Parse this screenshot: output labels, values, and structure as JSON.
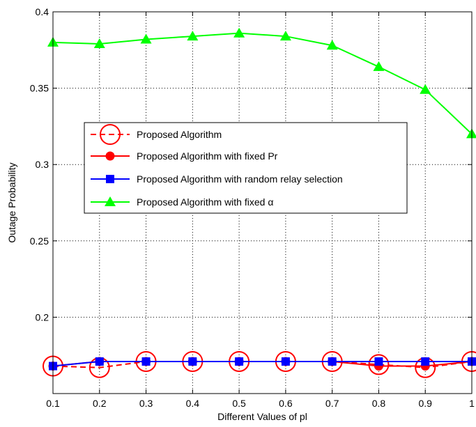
{
  "chart_data": {
    "type": "line",
    "xlabel": "Different Values of pl",
    "ylabel": "Outage Probability",
    "x": [
      0.1,
      0.2,
      0.3,
      0.4,
      0.5,
      0.6,
      0.7,
      0.8,
      0.9,
      1
    ],
    "xlim": [
      0.1,
      1
    ],
    "ylim": [
      0.15,
      0.4
    ],
    "xticks": [
      "0.1",
      "0.2",
      "0.3",
      "0.4",
      "0.5",
      "0.6",
      "0.7",
      "0.8",
      "0.9",
      "1"
    ],
    "yticks": [
      "0.2",
      "0.25",
      "0.3",
      "0.35",
      "0.4"
    ],
    "ytick_values": [
      0.2,
      0.25,
      0.3,
      0.35,
      0.4
    ],
    "grid": true,
    "legend_position": "center-left",
    "series": [
      {
        "name": "Proposed Algorithm",
        "color": "#ff0000",
        "line_style": "dashed",
        "marker": "open-circle",
        "values": [
          0.168,
          0.167,
          0.171,
          0.171,
          0.171,
          0.171,
          0.171,
          0.169,
          0.167,
          0.171
        ]
      },
      {
        "name": "Proposed Algorithm with fixed Pr",
        "color": "#ff0000",
        "line_style": "solid",
        "marker": "filled-circle",
        "values": [
          0.168,
          0.171,
          0.171,
          0.171,
          0.171,
          0.171,
          0.171,
          0.168,
          0.168,
          0.171
        ]
      },
      {
        "name": "Proposed Algorithm with random relay selection",
        "color": "#0000ff",
        "line_style": "solid",
        "marker": "filled-square",
        "values": [
          0.168,
          0.171,
          0.171,
          0.171,
          0.171,
          0.171,
          0.171,
          0.171,
          0.171,
          0.171
        ]
      },
      {
        "name": "Proposed Algorithm with fixed α",
        "color": "#00ff00",
        "line_style": "solid",
        "marker": "filled-triangle",
        "values": [
          0.38,
          0.379,
          0.382,
          0.384,
          0.386,
          0.384,
          0.378,
          0.364,
          0.349,
          0.32
        ]
      }
    ]
  }
}
